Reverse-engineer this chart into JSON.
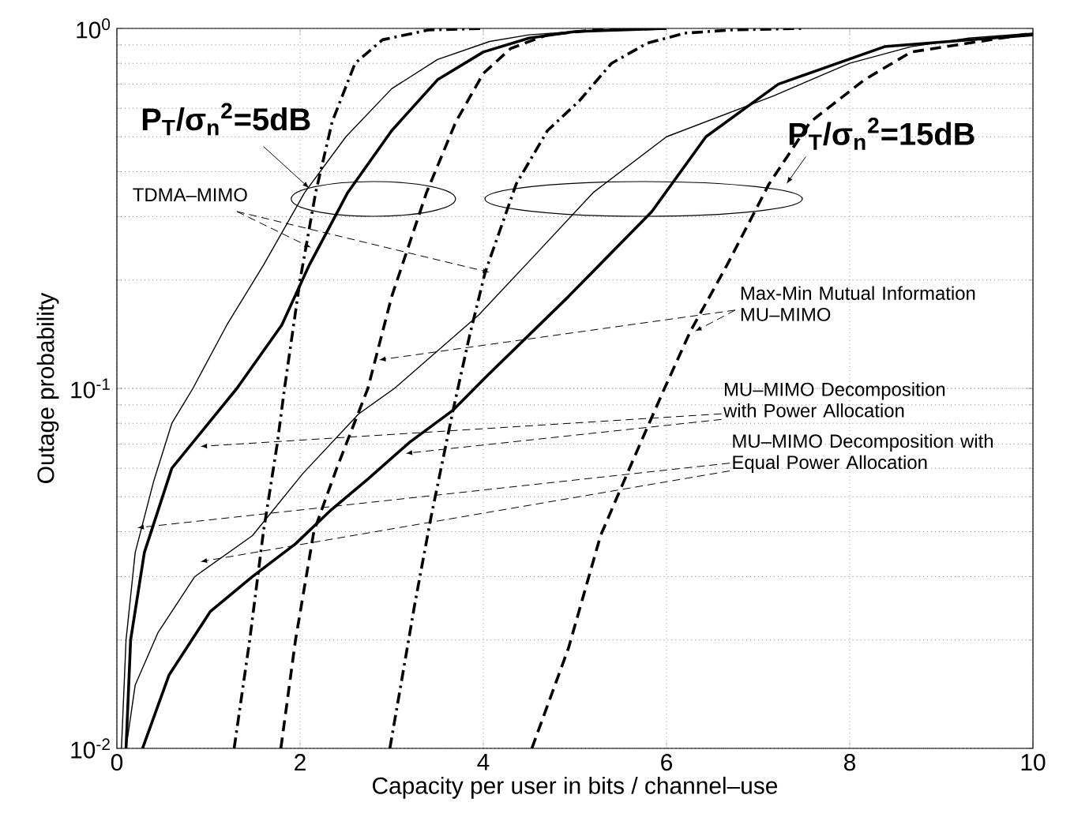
{
  "chart_data": {
    "type": "line",
    "xlabel": "Capacity per user in bits / channel–use",
    "ylabel": "Outage probability",
    "log": "y",
    "grid": true,
    "xlim": [
      0,
      10
    ],
    "ylim": [
      0.01,
      1
    ],
    "xticks": [
      0,
      2,
      4,
      6,
      8,
      10
    ],
    "yticks": [
      {
        "value": 0.01,
        "label": "10$^{-2}$"
      },
      {
        "value": 0.1,
        "label": "10$^{-1}$"
      },
      {
        "value": 1,
        "label": "10$^{0}$"
      }
    ],
    "annotations": [
      {
        "text": "TDMA–MIMO",
        "x": 2.12,
        "y": 0.246
      },
      {
        "text": "Max-Min Mutual Information MU–MIMO",
        "x": 2.86,
        "y": 0.12
      },
      {
        "text": "MU–MIMO Decomposition with Power Allocation",
        "x": 0.91,
        "y": 0.069
      },
      {
        "text": "MU–MIMO Decomposition with Equal Power Allocation",
        "x": 0.22,
        "y": 0.041
      },
      {
        "text": "P$_{T}$/σ$_{n}$$^{2}$=5dB",
        "x": 2.1,
        "y": 0.36
      },
      "P$_{T}$/σ$_{n}$$^{2}$=15dB"
    ],
    "series": [
      {
        "color": "#000000",
        "line_style": "solid",
        "x": [
          0.05,
          0.1,
          0.2,
          0.4,
          0.6,
          0.83,
          1.2,
          1.6,
          2.05,
          2.5,
          3.0,
          3.5,
          4.07,
          4.5,
          5,
          5.5,
          6
        ],
        "values": [
          0.01,
          0.02,
          0.035,
          0.055,
          0.08,
          0.1,
          0.15,
          0.22,
          0.35,
          0.5,
          0.68,
          0.82,
          0.92,
          0.96,
          0.98,
          0.99,
          1.0
        ]
      },
      {
        "color": "#000000",
        "line_style": "solid",
        "x": [
          0.1,
          0.15,
          0.3,
          0.6,
          1.0,
          1.31,
          1.8,
          2.1,
          2.52,
          3.0,
          3.5,
          4.0,
          4.5,
          5,
          5.5,
          6
        ],
        "values": [
          0.01,
          0.02,
          0.035,
          0.06,
          0.08,
          0.1,
          0.15,
          0.22,
          0.35,
          0.52,
          0.72,
          0.86,
          0.94,
          0.98,
          0.99,
          1.0
        ]
      },
      {
        "color": "#000000",
        "line_style": "dashdot",
        "x": [
          1.28,
          1.45,
          1.6,
          1.75,
          1.83,
          2.0,
          2.17,
          2.35,
          2.6,
          2.9,
          3.4,
          4
        ],
        "values": [
          0.01,
          0.02,
          0.04,
          0.07,
          0.1,
          0.2,
          0.35,
          0.55,
          0.8,
          0.93,
          0.99,
          1.0
        ]
      },
      {
        "color": "#000000",
        "line_style": "dashed",
        "x": [
          1.79,
          1.95,
          2.15,
          2.4,
          2.74,
          3.0,
          3.38,
          3.7,
          4.0,
          4.3,
          4.7,
          5.2,
          6
        ],
        "values": [
          0.01,
          0.02,
          0.04,
          0.06,
          0.1,
          0.18,
          0.35,
          0.55,
          0.75,
          0.88,
          0.96,
          0.99,
          1.0
        ]
      },
      {
        "color": "#000000",
        "line_style": "solid",
        "x": [
          0.1,
          0.2,
          0.45,
          0.85,
          1.48,
          2.03,
          2.64,
          3.03,
          3.95,
          4.6,
          5.2,
          6.0,
          7.17,
          8.0,
          8.67,
          9.3,
          10
        ],
        "values": [
          0.01,
          0.015,
          0.021,
          0.03,
          0.039,
          0.058,
          0.085,
          0.1,
          0.16,
          0.24,
          0.35,
          0.5,
          0.65,
          0.8,
          0.89,
          0.94,
          0.97
        ]
      },
      {
        "color": "#000000",
        "line_style": "solid",
        "x": [
          0.28,
          0.57,
          1.02,
          1.48,
          1.95,
          2.34,
          2.74,
          3.2,
          3.67,
          4.02,
          4.93,
          5.84,
          6.43,
          7.22,
          8.38,
          10
        ],
        "values": [
          0.01,
          0.016,
          0.024,
          0.03,
          0.037,
          0.046,
          0.056,
          0.071,
          0.087,
          0.107,
          0.18,
          0.31,
          0.5,
          0.7,
          0.89,
          0.96
        ]
      },
      {
        "color": "#000000",
        "line_style": "dashdot",
        "x": [
          2.98,
          3.1,
          3.25,
          3.43,
          3.67,
          3.85,
          4.02,
          4.36,
          4.7,
          5.05,
          5.4,
          5.79,
          6.2,
          6.7,
          7.5
        ],
        "values": [
          0.01,
          0.015,
          0.025,
          0.044,
          0.087,
          0.14,
          0.21,
          0.37,
          0.52,
          0.63,
          0.8,
          0.91,
          0.97,
          0.99,
          1.0
        ]
      },
      {
        "color": "#000000",
        "line_style": "dashed",
        "x": [
          4.53,
          4.93,
          5.28,
          5.62,
          5.97,
          6.26,
          6.66,
          7.12,
          7.57,
          8.16,
          8.67,
          10
        ],
        "values": [
          0.01,
          0.019,
          0.039,
          0.062,
          0.099,
          0.144,
          0.22,
          0.37,
          0.55,
          0.72,
          0.86,
          0.97
        ]
      }
    ]
  }
}
